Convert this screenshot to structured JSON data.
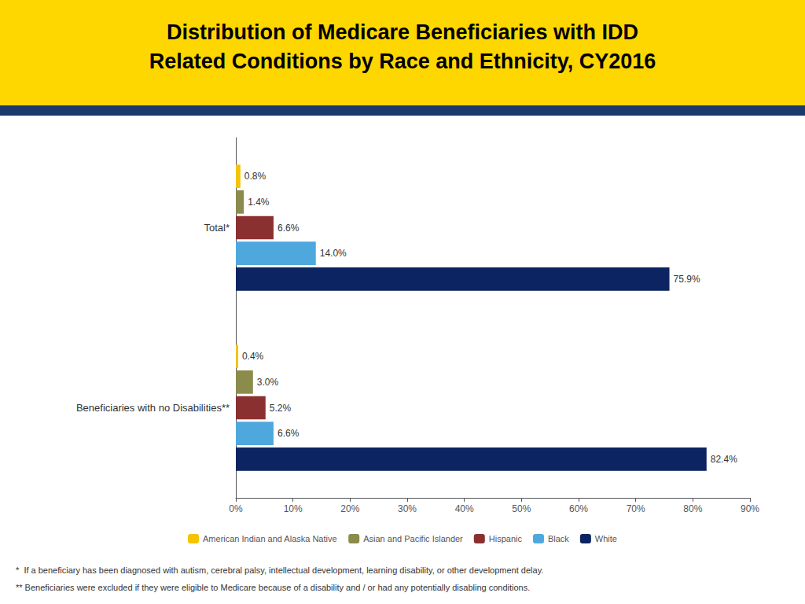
{
  "chart_data": {
    "type": "bar",
    "orientation": "horizontal",
    "title": "Distribution of Medicare Beneficiaries with IDD",
    "subtitle": "Related Conditions by Race and Ethnicity, CY2016",
    "categories": [
      "Total*",
      "Beneficiaries with no Disabilities**"
    ],
    "series": [
      {
        "name": "American Indian and Alaska Native",
        "color": "#F5C400",
        "values": [
          0.8,
          0.4
        ],
        "value_labels": [
          "0.8%",
          "0.4%"
        ]
      },
      {
        "name": "Asian and Pacific Islander",
        "color": "#8B8B4B",
        "values": [
          1.4,
          3.0
        ],
        "value_labels": [
          "1.4%",
          "3.0%"
        ]
      },
      {
        "name": "Hispanic",
        "color": "#8B3030",
        "values": [
          6.6,
          5.2
        ],
        "value_labels": [
          "6.6%",
          "5.2%"
        ]
      },
      {
        "name": "Black",
        "color": "#4EA8DE",
        "values": [
          14.0,
          6.6
        ],
        "value_labels": [
          "14.0%",
          "6.6%"
        ]
      },
      {
        "name": "White",
        "color": "#0C2461",
        "values": [
          75.9,
          82.4
        ],
        "value_labels": [
          "75.9%",
          "82.4%"
        ]
      }
    ],
    "xlim": [
      0,
      90
    ],
    "xticks": [
      {
        "value": 0,
        "label": "0%"
      },
      {
        "value": 10,
        "label": "10%"
      },
      {
        "value": 20,
        "label": "20%"
      },
      {
        "value": 30,
        "label": "30%"
      },
      {
        "value": 40,
        "label": "40%"
      },
      {
        "value": 50,
        "label": "50%"
      },
      {
        "value": 60,
        "label": "60%"
      },
      {
        "value": 70,
        "label": "70%"
      },
      {
        "value": 80,
        "label": "80%"
      },
      {
        "value": 90,
        "label": "90%"
      }
    ],
    "grid": false,
    "legend": "bottom",
    "data_labels": true,
    "annotations": [
      "*  If a beneficiary has been diagnosed with autism, cerebral palsy, intellectual development, learning disability, or other development delay.",
      "** Beneficiaries were excluded if they were eligible to Medicare because of a disability and / or had any potentially disabling conditions."
    ]
  }
}
